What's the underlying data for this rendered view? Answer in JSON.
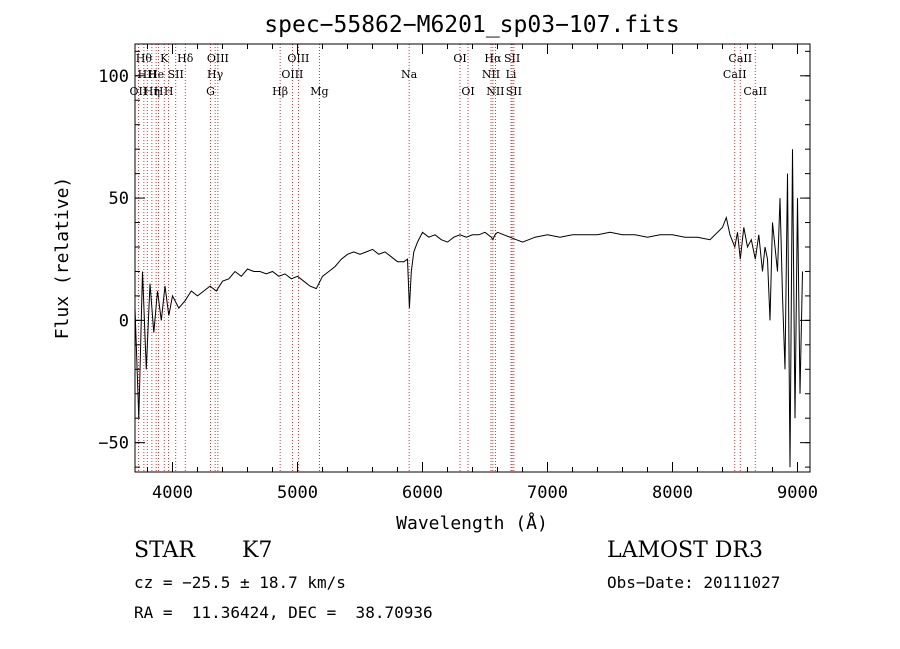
{
  "chart_data": {
    "type": "line",
    "title": "spec−55862−M6201_sp03−107.fits",
    "xlabel": "Wavelength (Å)",
    "ylabel": "Flux (relative)",
    "xlim": [
      3700,
      9100
    ],
    "ylim": [
      -62,
      113
    ],
    "x_ticks": [
      4000,
      5000,
      6000,
      7000,
      8000,
      9000
    ],
    "x_tick_labels": [
      "4000",
      "5000",
      "6000",
      "7000",
      "8000",
      "9000"
    ],
    "y_ticks": [
      -50,
      0,
      50,
      100
    ],
    "y_tick_labels": [
      "−50",
      "0",
      "50",
      "100"
    ],
    "grid": false,
    "legend": "none",
    "line_color": "#000000",
    "marker_color": "#cc0000",
    "series": [
      {
        "x": [
          3700,
          3730,
          3760,
          3790,
          3820,
          3850,
          3880,
          3910,
          3940,
          3970,
          4000,
          4050,
          4100,
          4150,
          4200,
          4250,
          4300,
          4350,
          4400,
          4450,
          4500,
          4550,
          4600,
          4650,
          4700,
          4750,
          4800,
          4850,
          4900,
          4950,
          5000,
          5050,
          5100,
          5150,
          5200,
          5250,
          5300,
          5350,
          5400,
          5450,
          5500,
          5550,
          5600,
          5650,
          5700,
          5750,
          5800,
          5850,
          5880,
          5895,
          5910,
          5930,
          5960,
          6000,
          6050,
          6100,
          6150,
          6200,
          6250,
          6300,
          6350,
          6400,
          6450,
          6500,
          6550,
          6563,
          6580,
          6600,
          6650,
          6700,
          6750,
          6800,
          6850,
          6900,
          7000,
          7100,
          7200,
          7300,
          7400,
          7500,
          7600,
          7700,
          7800,
          7900,
          8000,
          8100,
          8200,
          8300,
          8400,
          8430,
          8460,
          8498,
          8520,
          8542,
          8570,
          8600,
          8630,
          8662,
          8690,
          8720,
          8740,
          8760,
          8780,
          8800,
          8820,
          8840,
          8860,
          8880,
          8900,
          8920,
          8940,
          8960,
          8980,
          9000,
          9020,
          9040
        ],
        "y": [
          5,
          -40,
          20,
          -20,
          15,
          -5,
          12,
          0,
          14,
          2,
          10,
          5,
          8,
          12,
          10,
          12,
          14,
          12,
          16,
          17,
          20,
          18,
          21,
          20,
          20,
          19,
          20,
          18,
          19,
          17,
          18,
          16,
          14,
          13,
          18,
          20,
          22,
          25,
          27,
          28,
          27,
          28,
          29,
          27,
          28,
          26,
          24,
          24,
          25,
          5,
          20,
          28,
          32,
          36,
          34,
          35,
          33,
          32,
          34,
          35,
          34,
          35,
          35,
          36,
          34,
          33,
          35,
          36,
          35,
          34,
          33,
          32,
          33,
          34,
          35,
          34,
          35,
          35,
          35,
          36,
          35,
          35,
          34,
          35,
          35,
          34,
          34,
          33,
          38,
          42,
          35,
          30,
          36,
          25,
          38,
          30,
          33,
          25,
          35,
          20,
          30,
          25,
          0,
          40,
          30,
          20,
          50,
          10,
          -20,
          60,
          -60,
          70,
          -40,
          50,
          -30,
          20
        ]
      }
    ],
    "lines": [
      {
        "x": 3727,
        "label": "OII",
        "row": 3
      },
      {
        "x": 3771,
        "label": "Hθ",
        "row": 1
      },
      {
        "x": 3798,
        "label": "HH",
        "row": 2
      },
      {
        "x": 3835,
        "label": "Hη",
        "row": 3
      },
      {
        "x": 3869,
        "label": "He",
        "row": 2
      },
      {
        "x": 3889,
        "label": "H",
        "row": 3
      },
      {
        "x": 3934,
        "label": "K",
        "row": 1
      },
      {
        "x": 3969,
        "label": "H",
        "row": 3
      },
      {
        "x": 4026,
        "label": "SII",
        "row": 2
      },
      {
        "x": 4102,
        "label": "Hδ",
        "row": 1
      },
      {
        "x": 4304,
        "label": "G",
        "row": 3
      },
      {
        "x": 4341,
        "label": "Hγ",
        "row": 2
      },
      {
        "x": 4363,
        "label": "OIII",
        "row": 1
      },
      {
        "x": 4861,
        "label": "Hβ",
        "row": 3
      },
      {
        "x": 4959,
        "label": "OIII",
        "row": 2
      },
      {
        "x": 5007,
        "label": "OIII",
        "row": 1
      },
      {
        "x": 5175,
        "label": "Mg",
        "row": 3
      },
      {
        "x": 5893,
        "label": "Na",
        "row": 2
      },
      {
        "x": 6300,
        "label": "OI",
        "row": 1
      },
      {
        "x": 6364,
        "label": "OI",
        "row": 3
      },
      {
        "x": 6548,
        "label": "NII",
        "row": 2
      },
      {
        "x": 6563,
        "label": "Hα",
        "row": 1
      },
      {
        "x": 6583,
        "label": "NII",
        "row": 3
      },
      {
        "x": 6708,
        "label": "Li",
        "row": 2
      },
      {
        "x": 6717,
        "label": "SII",
        "row": 1
      },
      {
        "x": 6731,
        "label": "SII",
        "row": 3
      },
      {
        "x": 8498,
        "label": "CaII",
        "row": 2
      },
      {
        "x": 8542,
        "label": "CaII",
        "row": 1
      },
      {
        "x": 8662,
        "label": "CaII",
        "row": 3
      }
    ]
  },
  "info": {
    "class": "STAR",
    "subclass": "K7",
    "survey": "LAMOST DR3",
    "redshift": "cz = −25.5 ± 18.7 km/s",
    "obs_date": "Obs−Date: 20111027",
    "coords": "RA =  11.36424, DEC =  38.70936"
  }
}
